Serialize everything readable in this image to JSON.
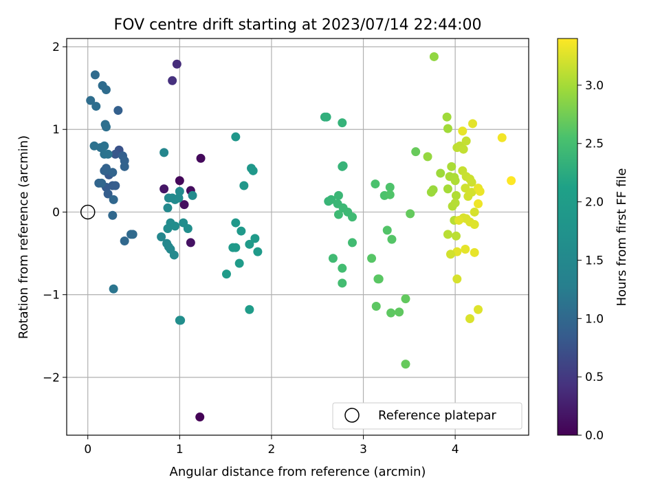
{
  "chart_data": {
    "type": "scatter",
    "title": "FOV centre drift starting at 2023/07/14 22:44:00",
    "xlabel": "Angular distance from reference (arcmin)",
    "ylabel": "Rotation from reference (arcmin)",
    "xlim": [
      -0.23,
      4.8
    ],
    "ylim": [
      -2.7,
      2.1
    ],
    "x_ticks": [
      0,
      1,
      2,
      3,
      4
    ],
    "y_ticks": [
      -2,
      -1,
      0,
      1,
      2
    ],
    "x_tick_labels": [
      "0",
      "1",
      "2",
      "3",
      "4"
    ],
    "y_tick_labels": [
      "−2",
      "−1",
      "0",
      "1",
      "2"
    ],
    "grid": true,
    "colormap": "viridis",
    "colorbar": {
      "label": "Hours from first FF file",
      "range": [
        0,
        3.4
      ],
      "ticks": [
        0.0,
        0.5,
        1.0,
        1.5,
        2.0,
        2.5,
        3.0
      ],
      "tick_labels": [
        "0.0",
        "0.5",
        "1.0",
        "1.5",
        "2.0",
        "2.5",
        "3.0"
      ]
    },
    "legend": {
      "position": "lower-right",
      "entries": [
        "Reference platepar"
      ]
    },
    "reference_point": {
      "x": 0,
      "y": 0,
      "marker": "open-circle",
      "label": "Reference platepar"
    },
    "points": [
      [
        1.22,
        -2.48,
        0.02
      ],
      [
        1.0,
        0.38,
        0.05
      ],
      [
        1.23,
        0.65,
        0.07
      ],
      [
        1.12,
        0.26,
        0.1
      ],
      [
        1.05,
        0.09,
        0.12
      ],
      [
        1.12,
        -0.37,
        0.15
      ],
      [
        0.83,
        0.28,
        0.18
      ],
      [
        0.97,
        1.79,
        0.38
      ],
      [
        0.92,
        1.59,
        0.42
      ],
      [
        0.34,
        0.75,
        0.75
      ],
      [
        0.3,
        0.7,
        0.8
      ],
      [
        0.23,
        0.45,
        0.82
      ],
      [
        0.2,
        0.3,
        0.84
      ],
      [
        0.27,
        0.32,
        0.85
      ],
      [
        0.3,
        0.32,
        0.86
      ],
      [
        0.22,
        0.22,
        0.87
      ],
      [
        0.33,
        1.23,
        0.9
      ],
      [
        0.38,
        0.68,
        0.9
      ],
      [
        0.4,
        0.62,
        0.92
      ],
      [
        0.4,
        0.55,
        0.93
      ],
      [
        0.18,
        0.5,
        0.93
      ],
      [
        0.2,
        0.53,
        0.94
      ],
      [
        0.27,
        0.48,
        0.95
      ],
      [
        0.12,
        0.35,
        0.96
      ],
      [
        0.15,
        0.35,
        0.97
      ],
      [
        0.28,
        0.15,
        0.98
      ],
      [
        0.27,
        -0.04,
        0.99
      ],
      [
        0.4,
        -0.35,
        1.0
      ],
      [
        0.47,
        -0.27,
        1.01
      ],
      [
        0.49,
        -0.27,
        1.02
      ],
      [
        0.08,
        1.66,
        1.03
      ],
      [
        0.16,
        1.53,
        1.04
      ],
      [
        0.2,
        1.48,
        1.05
      ],
      [
        0.03,
        1.35,
        1.06
      ],
      [
        0.09,
        1.28,
        1.07
      ],
      [
        0.19,
        1.06,
        1.08
      ],
      [
        0.2,
        1.03,
        1.09
      ],
      [
        0.07,
        0.8,
        1.1
      ],
      [
        0.14,
        0.78,
        1.11
      ],
      [
        0.18,
        0.8,
        1.12
      ],
      [
        0.18,
        0.7,
        1.13
      ],
      [
        0.22,
        0.7,
        1.14
      ],
      [
        0.28,
        -0.93,
        1.15
      ],
      [
        0.83,
        0.72,
        1.45
      ],
      [
        0.8,
        -0.3,
        1.46
      ],
      [
        0.86,
        -0.38,
        1.47
      ],
      [
        0.88,
        -0.42,
        1.48
      ],
      [
        0.9,
        -0.45,
        1.49
      ],
      [
        0.94,
        -0.52,
        1.5
      ],
      [
        0.87,
        0.05,
        1.51
      ],
      [
        0.88,
        0.17,
        1.52
      ],
      [
        0.92,
        0.17,
        1.53
      ],
      [
        0.95,
        0.15,
        1.54
      ],
      [
        0.99,
        0.17,
        1.55
      ],
      [
        1.0,
        0.25,
        1.56
      ],
      [
        1.14,
        0.2,
        1.57
      ],
      [
        0.87,
        -0.2,
        1.58
      ],
      [
        0.9,
        -0.13,
        1.59
      ],
      [
        0.95,
        -0.17,
        1.6
      ],
      [
        1.04,
        -0.13,
        1.61
      ],
      [
        1.09,
        -0.2,
        1.62
      ],
      [
        1.0,
        -1.31,
        1.63
      ],
      [
        1.01,
        -1.31,
        1.64
      ],
      [
        1.61,
        0.91,
        1.85
      ],
      [
        1.7,
        0.32,
        1.86
      ],
      [
        1.78,
        0.53,
        1.87
      ],
      [
        1.8,
        0.5,
        1.88
      ],
      [
        1.61,
        -0.13,
        1.89
      ],
      [
        1.67,
        -0.23,
        1.9
      ],
      [
        1.58,
        -0.43,
        1.91
      ],
      [
        1.61,
        -0.43,
        1.92
      ],
      [
        1.76,
        -0.39,
        1.93
      ],
      [
        1.82,
        -0.32,
        1.94
      ],
      [
        1.85,
        -0.48,
        1.95
      ],
      [
        1.65,
        -0.62,
        1.96
      ],
      [
        1.51,
        -0.75,
        1.97
      ],
      [
        1.76,
        -1.18,
        1.98
      ],
      [
        2.58,
        1.15,
        2.3
      ],
      [
        2.6,
        1.15,
        2.31
      ],
      [
        2.77,
        1.08,
        2.35
      ],
      [
        2.77,
        0.55,
        2.36
      ],
      [
        2.78,
        0.56,
        2.37
      ],
      [
        2.62,
        0.13,
        2.38
      ],
      [
        2.65,
        0.15,
        2.39
      ],
      [
        2.72,
        0.1,
        2.4
      ],
      [
        2.73,
        0.2,
        2.41
      ],
      [
        2.78,
        0.05,
        2.42
      ],
      [
        2.83,
        0.0,
        2.43
      ],
      [
        2.73,
        -0.03,
        2.44
      ],
      [
        2.88,
        -0.06,
        2.45
      ],
      [
        2.67,
        -0.56,
        2.46
      ],
      [
        2.88,
        -0.37,
        2.47
      ],
      [
        2.77,
        -0.68,
        2.48
      ],
      [
        2.77,
        -0.86,
        2.49
      ],
      [
        3.13,
        0.34,
        2.55
      ],
      [
        3.23,
        0.2,
        2.56
      ],
      [
        3.29,
        0.3,
        2.57
      ],
      [
        3.29,
        0.21,
        2.58
      ],
      [
        3.26,
        -0.22,
        2.59
      ],
      [
        3.31,
        -0.33,
        2.6
      ],
      [
        3.09,
        -0.56,
        2.61
      ],
      [
        3.16,
        -0.81,
        2.62
      ],
      [
        3.17,
        -0.81,
        2.63
      ],
      [
        3.14,
        -1.14,
        2.64
      ],
      [
        3.3,
        -1.22,
        2.65
      ],
      [
        3.39,
        -1.21,
        2.66
      ],
      [
        3.46,
        -1.05,
        2.67
      ],
      [
        3.51,
        -0.02,
        2.68
      ],
      [
        3.46,
        -1.84,
        2.69
      ],
      [
        3.57,
        0.73,
        2.7
      ],
      [
        3.77,
        1.88,
        2.9
      ],
      [
        3.7,
        0.67,
        2.92
      ],
      [
        3.76,
        0.27,
        2.94
      ],
      [
        3.74,
        0.24,
        2.95
      ],
      [
        3.84,
        0.47,
        2.96
      ],
      [
        3.91,
        1.15,
        2.97
      ],
      [
        3.92,
        1.01,
        2.98
      ],
      [
        3.92,
        0.28,
        3.0
      ],
      [
        3.94,
        0.43,
        3.01
      ],
      [
        3.96,
        0.55,
        3.02
      ],
      [
        3.99,
        0.42,
        3.03
      ],
      [
        4.0,
        0.38,
        3.04
      ],
      [
        4.01,
        0.2,
        3.05
      ],
      [
        3.97,
        0.07,
        3.06
      ],
      [
        4.0,
        0.11,
        3.07
      ],
      [
        3.99,
        -0.1,
        3.08
      ],
      [
        3.92,
        -0.27,
        3.09
      ],
      [
        4.01,
        -0.29,
        3.1
      ],
      [
        4.02,
        0.78,
        3.11
      ],
      [
        4.05,
        0.8,
        3.12
      ],
      [
        4.09,
        0.76,
        3.13
      ],
      [
        4.12,
        0.86,
        3.14
      ],
      [
        4.08,
        0.5,
        3.15
      ],
      [
        4.12,
        0.43,
        3.16
      ],
      [
        4.16,
        0.4,
        3.17
      ],
      [
        4.18,
        0.36,
        3.18
      ],
      [
        4.11,
        0.29,
        3.19
      ],
      [
        4.14,
        0.19,
        3.2
      ],
      [
        4.18,
        0.24,
        3.21
      ],
      [
        4.21,
        0.0,
        3.22
      ],
      [
        4.09,
        -0.07,
        3.23
      ],
      [
        4.12,
        -0.08,
        3.24
      ],
      [
        4.16,
        -0.12,
        3.25
      ],
      [
        4.21,
        -0.15,
        3.26
      ],
      [
        4.04,
        -0.1,
        3.27
      ],
      [
        4.02,
        -0.48,
        3.28
      ],
      [
        4.11,
        -0.45,
        3.29
      ],
      [
        4.21,
        -0.49,
        3.3
      ],
      [
        3.95,
        -0.51,
        3.2
      ],
      [
        4.02,
        -0.81,
        3.22
      ],
      [
        4.16,
        -1.29,
        3.24
      ],
      [
        4.25,
        -1.18,
        3.26
      ],
      [
        4.19,
        1.07,
        3.28
      ],
      [
        4.08,
        0.98,
        3.3
      ],
      [
        4.25,
        0.29,
        3.31
      ],
      [
        4.27,
        0.25,
        3.32
      ],
      [
        4.25,
        0.1,
        3.33
      ],
      [
        4.51,
        0.9,
        3.35
      ],
      [
        4.61,
        0.38,
        3.4
      ]
    ]
  }
}
